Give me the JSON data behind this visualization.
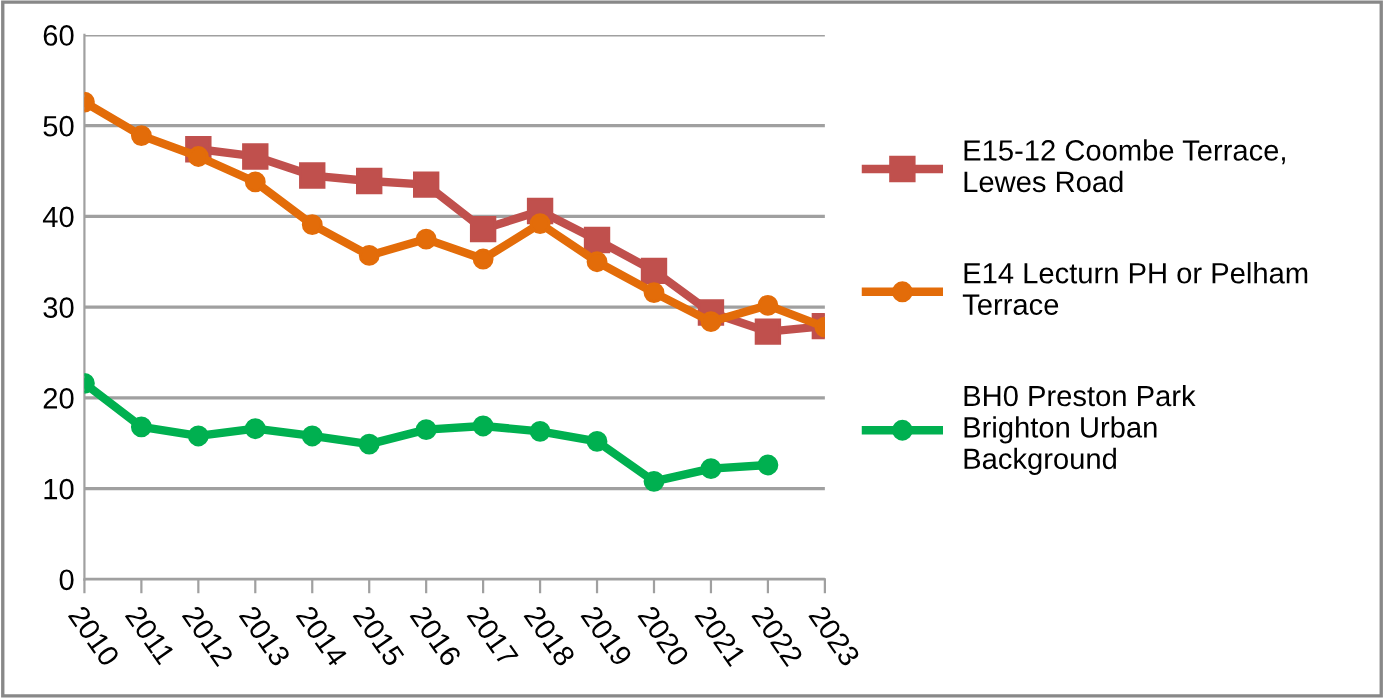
{
  "chart_data": {
    "type": "line",
    "categories": [
      "2010",
      "2011",
      "2012",
      "2013",
      "2014",
      "2015",
      "2016",
      "2017",
      "2018",
      "2019",
      "2020",
      "2021",
      "2022",
      "2023"
    ],
    "series": [
      {
        "name": "E15-12 Coombe Terrace, Lewes Road",
        "color": "#c0504d",
        "marker": "square",
        "values": [
          null,
          null,
          47.4,
          46.6,
          44.5,
          43.9,
          43.5,
          38.6,
          40.6,
          37.4,
          34.0,
          29.4,
          27.3,
          27.9
        ]
      },
      {
        "name": "E14 Lecturn PH or Pelham Terrace",
        "color": "#e36c09",
        "marker": "circle",
        "values": [
          52.6,
          48.9,
          46.6,
          43.8,
          39.1,
          35.7,
          37.5,
          35.3,
          39.2,
          35.0,
          31.6,
          28.4,
          30.2,
          27.8
        ]
      },
      {
        "name": "BH0 Preston Park Brighton Urban Background",
        "color": "#00b050",
        "marker": "circle",
        "values": [
          21.6,
          16.8,
          15.8,
          16.6,
          15.8,
          14.9,
          16.5,
          16.9,
          16.3,
          15.2,
          10.8,
          12.2,
          12.6,
          null
        ]
      }
    ],
    "ylim": [
      0,
      60
    ],
    "yticks": [
      0,
      10,
      20,
      30,
      40,
      50,
      60
    ],
    "grid": "y",
    "legend": "right",
    "line_style": "solid"
  }
}
